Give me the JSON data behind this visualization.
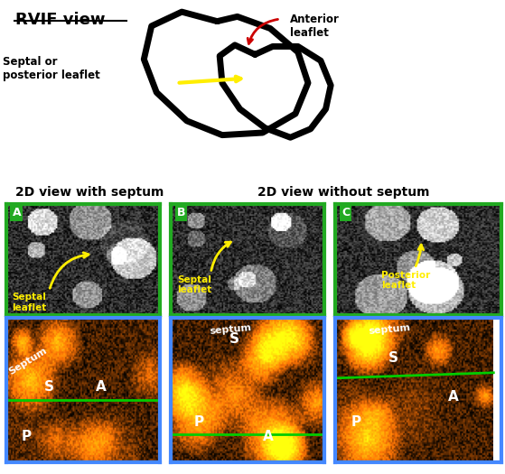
{
  "title_text": "RVIF view",
  "label_anterior": "Anterior\nleaflet",
  "label_septal": "Septal or\nposterior leaflet",
  "label_2d_with": "2D view with septum",
  "label_2d_without": "2D view without septum",
  "panel_labels": [
    "A",
    "B",
    "C"
  ],
  "bg_color": "#ffffff",
  "green_border": "#22aa22",
  "blue_border": "#4488ff",
  "arrow_yellow": "#ffee00",
  "arrow_red": "#cc0000",
  "text_white": "#ffffff",
  "text_black": "#000000",
  "green_line": "#00cc00"
}
